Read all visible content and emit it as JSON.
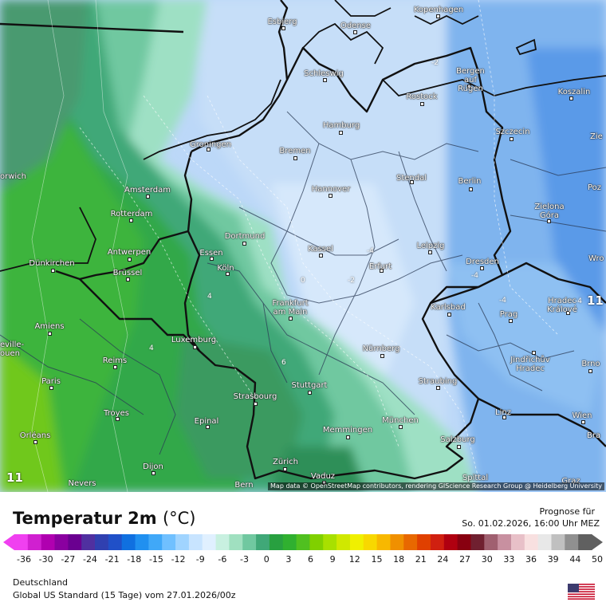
{
  "map": {
    "attribution": "Map data © OpenStreetMap contributors, rendering GIScience Research Group @ Heidelberg University",
    "marker_left": "11",
    "marker_right": "11",
    "cities": [
      {
        "name": "Esbjerg"
      },
      {
        "name": "Odense"
      },
      {
        "name": "Kopenhagen"
      },
      {
        "name": "Schleswig"
      },
      {
        "name": "Bergen auf Rügen"
      },
      {
        "name": "Rostock"
      },
      {
        "name": "Koszalin"
      },
      {
        "name": "Hamburg"
      },
      {
        "name": "Szczecin"
      },
      {
        "name": "Groningen"
      },
      {
        "name": "Bremen"
      },
      {
        "name": "Amsterdam"
      },
      {
        "name": "Hannover"
      },
      {
        "name": "Stendal"
      },
      {
        "name": "Berlin"
      },
      {
        "name": "Zielona Góra"
      },
      {
        "name": "Rotterdam"
      },
      {
        "name": "Dortmund"
      },
      {
        "name": "Antwerpen"
      },
      {
        "name": "Essen"
      },
      {
        "name": "Kassel"
      },
      {
        "name": "Leipzig"
      },
      {
        "name": "Dresden"
      },
      {
        "name": "Dünkirchen"
      },
      {
        "name": "Brüssel"
      },
      {
        "name": "Köln"
      },
      {
        "name": "Erfurt"
      },
      {
        "name": "Frankfurt am Main"
      },
      {
        "name": "Karlsbad"
      },
      {
        "name": "Prag"
      },
      {
        "name": "Hradec Králové"
      },
      {
        "name": "Amiens"
      },
      {
        "name": "Luxemburg"
      },
      {
        "name": "Nürnberg"
      },
      {
        "name": "Jindřichův Hradec"
      },
      {
        "name": "Brno"
      },
      {
        "name": "Reims"
      },
      {
        "name": "Paris"
      },
      {
        "name": "Stuttgart"
      },
      {
        "name": "Strasbourg"
      },
      {
        "name": "Straubing"
      },
      {
        "name": "Troyes"
      },
      {
        "name": "Epinal"
      },
      {
        "name": "Linz"
      },
      {
        "name": "Wien"
      },
      {
        "name": "München"
      },
      {
        "name": "Memmingen"
      },
      {
        "name": "Orléans"
      },
      {
        "name": "Salzburg"
      },
      {
        "name": "Dijon"
      },
      {
        "name": "Zürich"
      },
      {
        "name": "Vaduz"
      },
      {
        "name": "Nevers"
      },
      {
        "name": "Bern"
      },
      {
        "name": "Spittal"
      },
      {
        "name": "Graz"
      },
      {
        "name": "orwich"
      },
      {
        "name": "eville-ouen"
      },
      {
        "name": "Zie"
      },
      {
        "name": "Poz"
      },
      {
        "name": "Wro"
      },
      {
        "name": "Bra"
      }
    ],
    "isolines": [
      "-2",
      "-4",
      "-4",
      "-2",
      "-4",
      "-4",
      "0",
      "4",
      "4",
      "6"
    ]
  },
  "legend": {
    "title": "Temperatur 2m",
    "unit": "(°C)",
    "forecast_label": "Prognose für",
    "forecast_time": "So. 01.02.2026, 16:00 Uhr MEZ",
    "ticks": [
      "-36",
      "-30",
      "-27",
      "-24",
      "-21",
      "-18",
      "-15",
      "-12",
      "-9",
      "-6",
      "-3",
      "0",
      "3",
      "6",
      "9",
      "12",
      "15",
      "18",
      "21",
      "24",
      "27",
      "30",
      "33",
      "36",
      "39",
      "44",
      "50"
    ],
    "colors": [
      "#f040f0",
      "#d020d0",
      "#b000b0",
      "#8a00a0",
      "#6a0090",
      "#5030a0",
      "#3040b0",
      "#2050c8",
      "#1070e0",
      "#2090f0",
      "#40a8f8",
      "#70c0ff",
      "#a0d4ff",
      "#c8e4ff",
      "#e0f0ff",
      "#c8f0e0",
      "#a0e0c0",
      "#70c8a0",
      "#40a878",
      "#28a040",
      "#30b030",
      "#50c020",
      "#80d000",
      "#a8e000",
      "#d0e800",
      "#f0f000",
      "#f8d800",
      "#f8b800",
      "#f09000",
      "#e86800",
      "#e04000",
      "#d02010",
      "#b00010",
      "#880010",
      "#702030",
      "#a06070",
      "#c890a0",
      "#e8c0c8",
      "#f8e0e0",
      "#e8e8e8",
      "#c0c0c0",
      "#909090",
      "#606060"
    ]
  },
  "footer": {
    "region": "Deutschland",
    "model": "Global US Standard (15 Tage)  vom  27.01.2026/00z",
    "flag_icon": "us-flag-icon"
  }
}
